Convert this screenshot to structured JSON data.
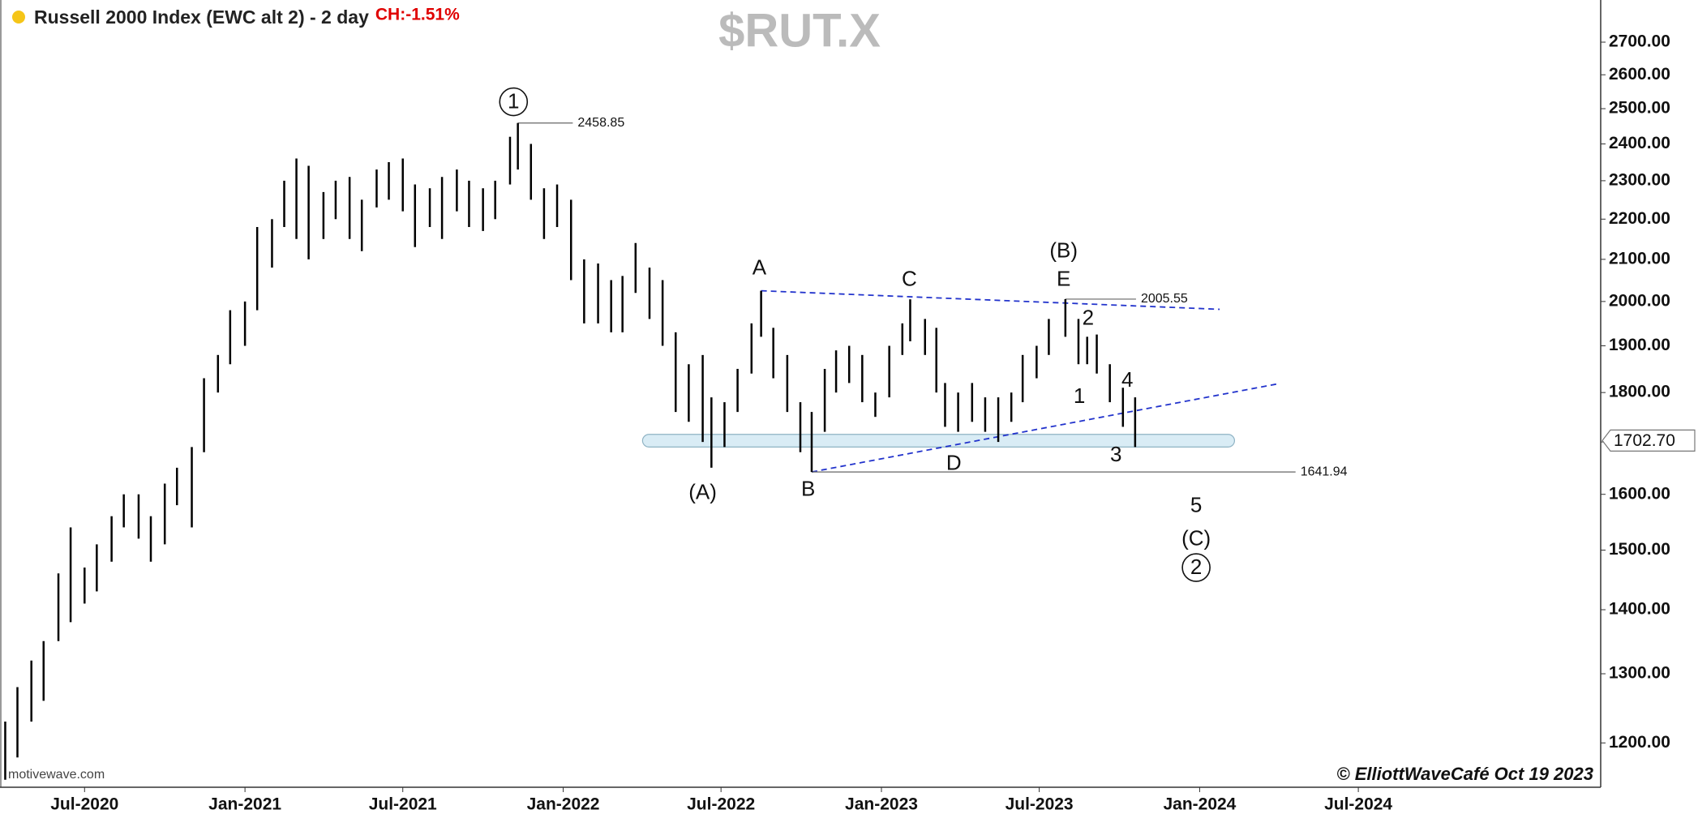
{
  "chart_data": {
    "type": "ohlc",
    "title": "Russell 2000 Index (EWC alt 2) - 2 day",
    "change_text": "CH:-1.51%",
    "watermark": "$RUT.X",
    "copyright": "© ElliottWaveCafé Oct 19 2023",
    "source": "motivewave.com",
    "color": "#000000",
    "log_scale": true,
    "xlim": [
      "2020-03-26",
      "2025-04-05"
    ],
    "xticks": [
      {
        "value": "2020-07-01",
        "label": "Jul-2020"
      },
      {
        "value": "2021-01-01",
        "label": "Jan-2021"
      },
      {
        "value": "2021-07-01",
        "label": "Jul-2021"
      },
      {
        "value": "2022-01-01",
        "label": "Jan-2022"
      },
      {
        "value": "2022-07-01",
        "label": "Jul-2022"
      },
      {
        "value": "2023-01-01",
        "label": "Jan-2023"
      },
      {
        "value": "2023-07-01",
        "label": "Jul-2023"
      },
      {
        "value": "2024-01-01",
        "label": "Jan-2024"
      },
      {
        "value": "2024-07-01",
        "label": "Jul-2024"
      }
    ],
    "ylim": [
      1140,
      2835
    ],
    "yticks": [
      {
        "value": 1200,
        "label": "1200.00"
      },
      {
        "value": 1300,
        "label": "1300.00"
      },
      {
        "value": 1400,
        "label": "1400.00"
      },
      {
        "value": 1500,
        "label": "1500.00"
      },
      {
        "value": 1600,
        "label": "1600.00"
      },
      {
        "value": 1700,
        "label": "1700.00"
      },
      {
        "value": 1800,
        "label": "1800.00"
      },
      {
        "value": 1900,
        "label": "1900.00"
      },
      {
        "value": 2000,
        "label": "2000.00"
      },
      {
        "value": 2100,
        "label": "2100.00"
      },
      {
        "value": 2200,
        "label": "2200.00"
      },
      {
        "value": 2300,
        "label": "2300.00"
      },
      {
        "value": 2400,
        "label": "2400.00"
      },
      {
        "value": 2500,
        "label": "2500.00"
      },
      {
        "value": 2600,
        "label": "2600.00"
      },
      {
        "value": 2700,
        "label": "2700.00"
      }
    ],
    "x": [
      "2020-04-01",
      "2020-04-15",
      "2020-05-01",
      "2020-05-15",
      "2020-06-01",
      "2020-06-15",
      "2020-07-01",
      "2020-07-15",
      "2020-08-01",
      "2020-08-15",
      "2020-09-01",
      "2020-09-15",
      "2020-10-01",
      "2020-10-15",
      "2020-11-01",
      "2020-11-15",
      "2020-12-01",
      "2020-12-15",
      "2021-01-01",
      "2021-01-15",
      "2021-02-01",
      "2021-02-15",
      "2021-03-01",
      "2021-03-15",
      "2021-04-01",
      "2021-04-15",
      "2021-05-01",
      "2021-05-15",
      "2021-06-01",
      "2021-06-15",
      "2021-07-01",
      "2021-07-15",
      "2021-08-01",
      "2021-08-15",
      "2021-09-01",
      "2021-09-15",
      "2021-10-01",
      "2021-10-15",
      "2021-11-01",
      "2021-11-10",
      "2021-11-25",
      "2021-12-10",
      "2021-12-25",
      "2022-01-10",
      "2022-01-25",
      "2022-02-10",
      "2022-02-25",
      "2022-03-10",
      "2022-03-25",
      "2022-04-10",
      "2022-04-25",
      "2022-05-10",
      "2022-05-25",
      "2022-06-10",
      "2022-06-20",
      "2022-07-05",
      "2022-07-20",
      "2022-08-05",
      "2022-08-16",
      "2022-08-30",
      "2022-09-15",
      "2022-09-30",
      "2022-10-13",
      "2022-10-28",
      "2022-11-10",
      "2022-11-25",
      "2022-12-10",
      "2022-12-25",
      "2023-01-10",
      "2023-01-25",
      "2023-02-03",
      "2023-02-20",
      "2023-03-05",
      "2023-03-15",
      "2023-03-30",
      "2023-04-15",
      "2023-04-30",
      "2023-05-15",
      "2023-05-30",
      "2023-06-12",
      "2023-06-28",
      "2023-07-12",
      "2023-07-31",
      "2023-08-15",
      "2023-08-25",
      "2023-09-05",
      "2023-09-20",
      "2023-10-05",
      "2023-10-19"
    ],
    "high": [
      1230,
      1280,
      1320,
      1350,
      1460,
      1540,
      1470,
      1510,
      1560,
      1600,
      1600,
      1560,
      1620,
      1650,
      1690,
      1830,
      1880,
      1980,
      2000,
      2180,
      2200,
      2300,
      2360,
      2340,
      2270,
      2300,
      2310,
      2250,
      2330,
      2350,
      2360,
      2290,
      2280,
      2310,
      2330,
      2300,
      2280,
      2300,
      2420,
      2458.85,
      2400,
      2280,
      2290,
      2250,
      2100,
      2090,
      2050,
      2060,
      2140,
      2080,
      2050,
      1930,
      1860,
      1880,
      1790,
      1780,
      1850,
      1950,
      2025,
      1940,
      1880,
      1780,
      1760,
      1850,
      1890,
      1900,
      1880,
      1800,
      1900,
      1950,
      2005,
      1960,
      1940,
      1820,
      1800,
      1820,
      1790,
      1790,
      1800,
      1880,
      1900,
      1960,
      2005.55,
      1960,
      1920,
      1925,
      1860,
      1810,
      1790
    ],
    "low": [
      1150,
      1180,
      1230,
      1260,
      1350,
      1380,
      1410,
      1430,
      1480,
      1540,
      1520,
      1480,
      1510,
      1580,
      1540,
      1680,
      1800,
      1860,
      1900,
      1980,
      2080,
      2180,
      2150,
      2100,
      2150,
      2200,
      2150,
      2120,
      2230,
      2250,
      2220,
      2130,
      2180,
      2150,
      2220,
      2180,
      2170,
      2200,
      2290,
      2330,
      2250,
      2150,
      2180,
      2050,
      1950,
      1950,
      1930,
      1930,
      2020,
      1960,
      1900,
      1760,
      1740,
      1700,
      1650,
      1690,
      1760,
      1840,
      1920,
      1830,
      1760,
      1680,
      1641.94,
      1720,
      1800,
      1820,
      1780,
      1750,
      1790,
      1880,
      1910,
      1880,
      1800,
      1730,
      1720,
      1740,
      1720,
      1700,
      1740,
      1780,
      1830,
      1880,
      1920,
      1860,
      1860,
      1840,
      1780,
      1730,
      1690
    ],
    "last": {
      "value": 1702.7,
      "label": "1702.70"
    },
    "levels": [
      {
        "value": 2458.85,
        "from": "2021-11-10",
        "to": "2022-01-12"
      },
      {
        "value": 2005.55,
        "from": "2023-07-31",
        "to": "2023-10-20"
      },
      {
        "value": 1641.94,
        "from": "2022-10-13",
        "to": "2024-04-20"
      }
    ],
    "trend_color": "#2233cc",
    "trendlines": [
      {
        "from": [
          "2022-08-16",
          2025
        ],
        "to": [
          "2024-01-24",
          1982
        ]
      },
      {
        "from": [
          "2022-10-13",
          1641.94
        ],
        "to": [
          "2024-03-30",
          1818
        ]
      }
    ],
    "support_band": {
      "from": "2022-04-02",
      "to": "2024-02-10",
      "low": 1690,
      "high": 1715,
      "color": "#d9ecf5"
    },
    "annotations": [
      {
        "text": "1",
        "x": "2021-11-05",
        "y": 2520,
        "circled": true
      },
      {
        "text": "A",
        "x": "2022-08-14",
        "y": 2079,
        "circled": false
      },
      {
        "text": "(A)",
        "x": "2022-06-10",
        "y": 1603,
        "circled": false
      },
      {
        "text": "B",
        "x": "2022-10-09",
        "y": 1609,
        "circled": false
      },
      {
        "text": "C",
        "x": "2023-02-02",
        "y": 2052,
        "circled": false
      },
      {
        "text": "D",
        "x": "2023-03-25",
        "y": 1658,
        "circled": false
      },
      {
        "text": "(B)",
        "x": "2023-07-29",
        "y": 2120,
        "circled": false
      },
      {
        "text": "E",
        "x": "2023-07-29",
        "y": 2052,
        "circled": false
      },
      {
        "text": "2",
        "x": "2023-08-26",
        "y": 1961,
        "circled": false
      },
      {
        "text": "1",
        "x": "2023-08-16",
        "y": 1792,
        "circled": false
      },
      {
        "text": "4",
        "x": "2023-10-10",
        "y": 1826,
        "circled": false
      },
      {
        "text": "3",
        "x": "2023-09-27",
        "y": 1675,
        "circled": false
      },
      {
        "text": "5",
        "x": "2023-12-28",
        "y": 1579,
        "circled": false
      },
      {
        "text": "(C)",
        "x": "2023-12-28",
        "y": 1520,
        "circled": false
      },
      {
        "text": "2",
        "x": "2023-12-28",
        "y": 1470,
        "circled": true
      }
    ]
  }
}
